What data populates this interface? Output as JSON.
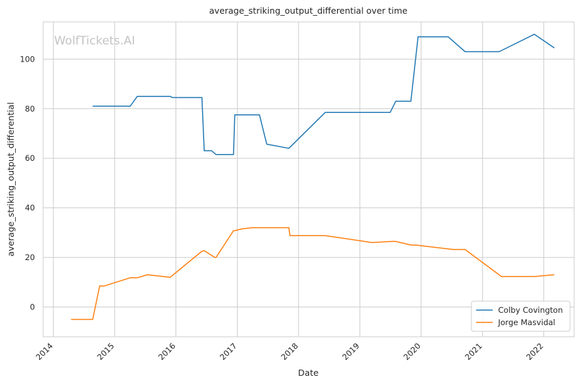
{
  "chart_data": {
    "type": "line",
    "title": "average_striking_output_differential over time",
    "xlabel": "Date",
    "ylabel": "average_striking_output_differential",
    "xlim": [
      "2013-11-01",
      "2022-07-01"
    ],
    "ylim": [
      -12,
      115
    ],
    "x_ticks": [
      "2014",
      "2015",
      "2016",
      "2017",
      "2018",
      "2019",
      "2020",
      "2021",
      "2022"
    ],
    "y_ticks": [
      0,
      20,
      40,
      60,
      80,
      100
    ],
    "grid": true,
    "legend_position": "lower right",
    "watermark": "WolfTickets.AI",
    "series": [
      {
        "name": "Colby Covington",
        "color": "#1f77b4",
        "points": [
          [
            "2014-08-23",
            81.0
          ],
          [
            "2015-04-04",
            81.0
          ],
          [
            "2015-05-16",
            85.0
          ],
          [
            "2015-11-28",
            85.0
          ],
          [
            "2015-12-10",
            84.5
          ],
          [
            "2016-06-04",
            84.5
          ],
          [
            "2016-06-18",
            63.0
          ],
          [
            "2016-08-01",
            63.0
          ],
          [
            "2016-08-27",
            61.5
          ],
          [
            "2016-12-09",
            61.5
          ],
          [
            "2016-12-17",
            77.5
          ],
          [
            "2017-05-13",
            77.5
          ],
          [
            "2017-06-25",
            65.7
          ],
          [
            "2017-11-04",
            64.0
          ],
          [
            "2018-06-09",
            78.5
          ],
          [
            "2019-07-01",
            78.5
          ],
          [
            "2019-08-03",
            83.0
          ],
          [
            "2019-11-01",
            83.0
          ],
          [
            "2019-12-14",
            109.0
          ],
          [
            "2020-06-10",
            109.0
          ],
          [
            "2020-09-19",
            103.0
          ],
          [
            "2021-04-10",
            103.0
          ],
          [
            "2021-11-06",
            110.0
          ],
          [
            "2022-03-05",
            104.5
          ]
        ]
      },
      {
        "name": "Jorge Masvidal",
        "color": "#ff7f0e",
        "points": [
          [
            "2014-04-16",
            -5.0
          ],
          [
            "2014-08-23",
            -5.0
          ],
          [
            "2014-10-04",
            8.5
          ],
          [
            "2014-11-01",
            8.5
          ],
          [
            "2015-04-04",
            11.8
          ],
          [
            "2015-05-16",
            11.8
          ],
          [
            "2015-07-15",
            13.0
          ],
          [
            "2015-11-28",
            12.0
          ],
          [
            "2016-06-04",
            22.5
          ],
          [
            "2016-06-18",
            22.7
          ],
          [
            "2016-08-20",
            20.0
          ],
          [
            "2016-08-27",
            20.0
          ],
          [
            "2016-12-09",
            30.8
          ],
          [
            "2016-12-17",
            30.8
          ],
          [
            "2017-01-28",
            31.5
          ],
          [
            "2017-04-01",
            32.0
          ],
          [
            "2017-11-04",
            32.0
          ],
          [
            "2017-11-10",
            28.8
          ],
          [
            "2018-06-09",
            28.8
          ],
          [
            "2019-03-16",
            26.0
          ],
          [
            "2019-07-13",
            26.5
          ],
          [
            "2019-08-01",
            26.5
          ],
          [
            "2019-11-02",
            25.0
          ],
          [
            "2019-12-01",
            25.0
          ],
          [
            "2020-07-11",
            23.2
          ],
          [
            "2020-09-19",
            23.2
          ],
          [
            "2021-04-24",
            12.3
          ],
          [
            "2021-11-06",
            12.3
          ],
          [
            "2022-03-05",
            13.0
          ]
        ]
      }
    ]
  }
}
